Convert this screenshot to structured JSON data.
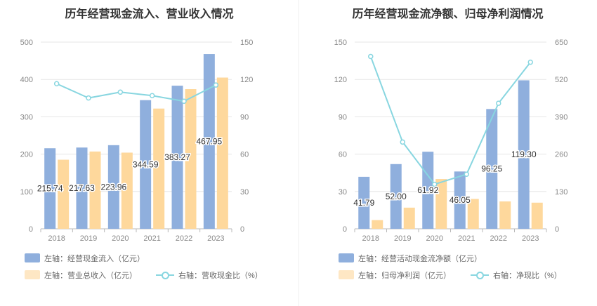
{
  "colors": {
    "bar_primary": "#8fafdd",
    "bar_secondary": "#fed89c",
    "line": "#88d6e0",
    "grid": "#e6e6e6"
  },
  "chart_data": [
    {
      "type": "bar",
      "title": "历年经营现金流入、营业收入情况",
      "categories": [
        "2018",
        "2019",
        "2020",
        "2021",
        "2022",
        "2023"
      ],
      "y_left": {
        "ticks": [
          "0",
          "100",
          "200",
          "300",
          "400",
          "500"
        ],
        "ylim": [
          0,
          500
        ]
      },
      "y_right": {
        "ticks": [
          "0",
          "30",
          "60",
          "90",
          "120",
          "150"
        ],
        "ylim": [
          0,
          150
        ]
      },
      "series": [
        {
          "name": "左轴：经营现金流入（亿元）",
          "kind": "bar",
          "axis": "left",
          "color": "#8fafdd",
          "values": [
            215.74,
            217.63,
            223.96,
            344.59,
            383.27,
            467.95
          ],
          "labels": [
            "215.74",
            "217.63",
            "223.96",
            "344.59",
            "383.27",
            "467.95"
          ]
        },
        {
          "name": "左轴：营业总收入（亿元）",
          "kind": "bar",
          "axis": "left",
          "color": "#fed89c",
          "values": [
            185,
            207,
            204,
            322,
            374,
            405
          ]
        },
        {
          "name": "右轴：营收现金比（%）",
          "kind": "line",
          "axis": "right",
          "color": "#88d6e0",
          "values": [
            116.6,
            105.1,
            109.8,
            107.0,
            102.5,
            115.5
          ]
        }
      ]
    },
    {
      "type": "bar",
      "title": "历年经营现金流净额、归母净利润情况",
      "categories": [
        "2018",
        "2019",
        "2020",
        "2021",
        "2022",
        "2023"
      ],
      "y_left": {
        "ticks": [
          "0",
          "30",
          "60",
          "90",
          "120",
          "150"
        ],
        "ylim": [
          0,
          150
        ]
      },
      "y_right": {
        "ticks": [
          "0",
          "130",
          "260",
          "390",
          "520",
          "650"
        ],
        "ylim": [
          0,
          650
        ]
      },
      "series": [
        {
          "name": "左轴：经营活动现金流净额（亿元）",
          "kind": "bar",
          "axis": "left",
          "color": "#8fafdd",
          "values": [
            41.79,
            52.0,
            61.92,
            46.05,
            96.25,
            119.3
          ],
          "labels": [
            "41.79",
            "52.00",
            "61.92",
            "46.05",
            "96.25",
            "119.30"
          ]
        },
        {
          "name": "左轴：归母净利润（亿元）",
          "kind": "bar",
          "axis": "left",
          "color": "#fed89c",
          "values": [
            7,
            17,
            40,
            24,
            22,
            21
          ]
        },
        {
          "name": "右轴：净现比（%）",
          "kind": "line",
          "axis": "right",
          "color": "#88d6e0",
          "values": [
            600,
            302,
            155,
            190,
            437,
            580
          ]
        }
      ]
    }
  ]
}
